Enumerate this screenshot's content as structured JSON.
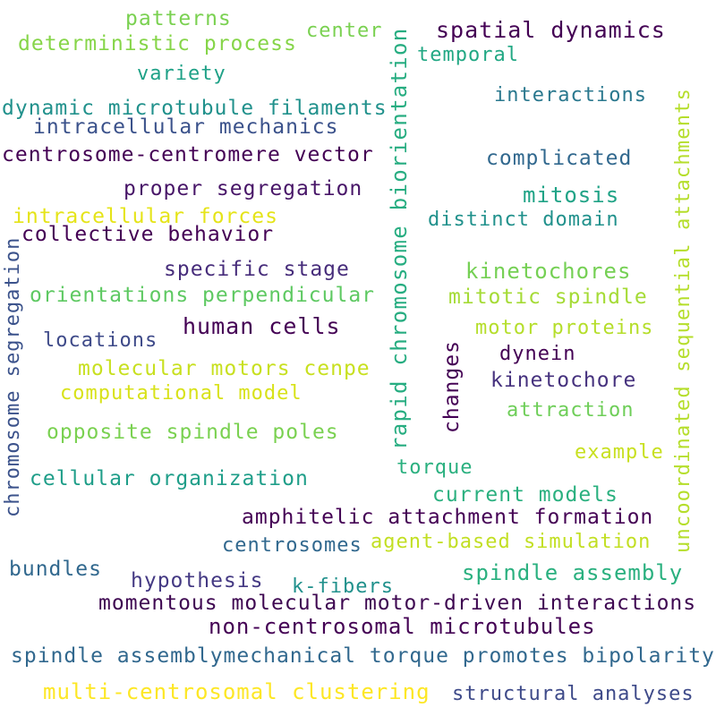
{
  "words": [
    {
      "text": "patterns",
      "color": "#7ad151"
    },
    {
      "text": "deterministic process",
      "color": "#86d549"
    },
    {
      "text": "center",
      "color": "#7ad151"
    },
    {
      "text": "spatial dynamics",
      "color": "#440154"
    },
    {
      "text": "temporal",
      "color": "#22a884"
    },
    {
      "text": "variety",
      "color": "#1fa187"
    },
    {
      "text": "interactions",
      "color": "#2a788e"
    },
    {
      "text": "dynamic microtubule filaments",
      "color": "#21918c"
    },
    {
      "text": "intracellular mechanics",
      "color": "#3b528b"
    },
    {
      "text": "centrosome-centromere vector",
      "color": "#440154"
    },
    {
      "text": "complicated",
      "color": "#31688e"
    },
    {
      "text": "proper segregation",
      "color": "#481668"
    },
    {
      "text": "mitosis",
      "color": "#20a386"
    },
    {
      "text": "intracellular forces",
      "color": "#e5e419"
    },
    {
      "text": "distinct domain",
      "color": "#21918c"
    },
    {
      "text": "collective behavior",
      "color": "#440154"
    },
    {
      "text": "specific stage",
      "color": "#472d7b"
    },
    {
      "text": "kinetochores",
      "color": "#75d054"
    },
    {
      "text": "orientations perpendicular",
      "color": "#5ec962"
    },
    {
      "text": "mitotic spindle",
      "color": "#a5db36"
    },
    {
      "text": "human cells",
      "color": "#440154"
    },
    {
      "text": "motor proteins",
      "color": "#b5de2b"
    },
    {
      "text": "locations",
      "color": "#3e4a89"
    },
    {
      "text": "dynein",
      "color": "#440154"
    },
    {
      "text": "molecular motors cenpe",
      "color": "#c8e020"
    },
    {
      "text": "kinetochore",
      "color": "#46327e"
    },
    {
      "text": "computational model",
      "color": "#d8e219"
    },
    {
      "text": "attraction",
      "color": "#6ece58"
    },
    {
      "text": "opposite spindle poles",
      "color": "#7ad151"
    },
    {
      "text": "example",
      "color": "#c8e020"
    },
    {
      "text": "torque",
      "color": "#2ab07f"
    },
    {
      "text": "cellular organization",
      "color": "#1f9e89"
    },
    {
      "text": "current models",
      "color": "#2ab07f"
    },
    {
      "text": "amphitelic attachment formation",
      "color": "#440154"
    },
    {
      "text": "centrosomes",
      "color": "#31688e"
    },
    {
      "text": "agent-based simulation",
      "color": "#c2df23"
    },
    {
      "text": "bundles",
      "color": "#31688e"
    },
    {
      "text": "spindle assembly",
      "color": "#2ab07f"
    },
    {
      "text": "hypothesis",
      "color": "#443983"
    },
    {
      "text": "k-fibers",
      "color": "#21918c"
    },
    {
      "text": "momentous molecular motor-driven interactions",
      "color": "#3e0751"
    },
    {
      "text": "non-centrosomal microtubules",
      "color": "#440154"
    },
    {
      "text": "spindle assemblymechanical torque promotes bipolarity",
      "color": "#31688e"
    },
    {
      "text": "multi-centrosomal clustering",
      "color": "#fde725"
    },
    {
      "text": "structural analyses",
      "color": "#3e4a89"
    },
    {
      "text": "chromosome segregation",
      "color": "#3b528b"
    },
    {
      "text": "rapid chromosome biorientation",
      "color": "#27ad81"
    },
    {
      "text": "changes",
      "color": "#440154"
    },
    {
      "text": "uncoordinated sequential attachments",
      "color": "#b5de2b"
    }
  ]
}
